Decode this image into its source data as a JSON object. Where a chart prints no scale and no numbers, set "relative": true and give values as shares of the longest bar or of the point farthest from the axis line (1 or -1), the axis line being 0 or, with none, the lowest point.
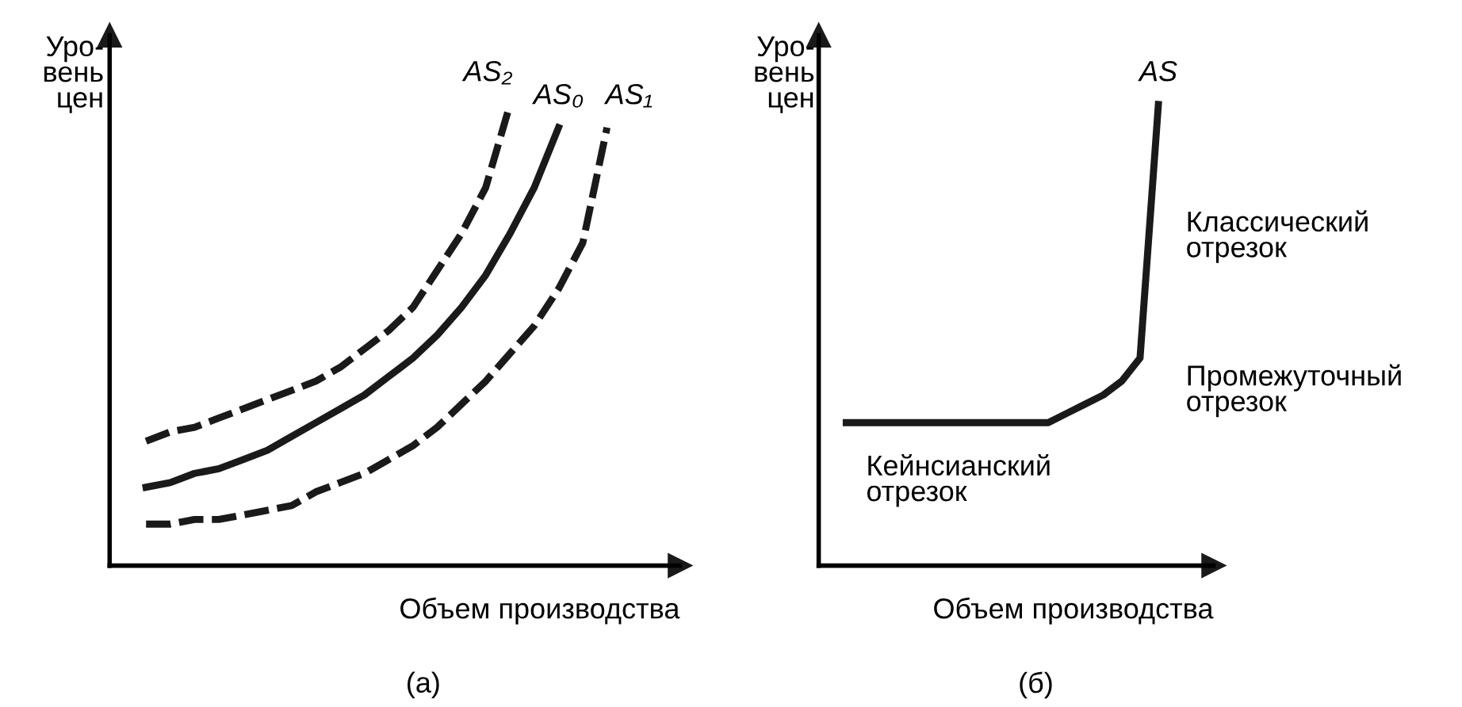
{
  "chart_data": [
    {
      "type": "line",
      "title": "(а)",
      "xlabel": "Объем производства",
      "ylabel": "Уро-\nвень\nцен",
      "relative": true,
      "legend": false,
      "grid": false,
      "marker": "none",
      "categories": [
        null,
        null,
        null,
        null,
        null,
        null,
        null,
        null,
        null,
        null,
        null,
        null,
        null,
        null,
        null,
        null,
        null,
        null,
        null,
        null
      ],
      "series": [
        {
          "name": "AS₂",
          "color": "#1a1a1a",
          "line_style": "dashed",
          "values": [
            0.27,
            0.29,
            0.3,
            0.32,
            0.34,
            0.36,
            0.38,
            0.4,
            0.43,
            0.47,
            0.51,
            0.56,
            0.64,
            0.72,
            0.82,
            1.0,
            null,
            null,
            null,
            null
          ]
        },
        {
          "name": "AS₀",
          "color": "#1a1a1a",
          "line_style": "solid",
          "values": [
            0.17,
            0.18,
            0.2,
            0.21,
            0.23,
            0.25,
            0.28,
            0.31,
            0.34,
            0.37,
            0.41,
            0.45,
            0.5,
            0.56,
            0.63,
            0.72,
            0.82,
            0.95,
            null,
            null
          ]
        },
        {
          "name": "AS₁",
          "color": "#1a1a1a",
          "line_style": "dashed",
          "values": [
            0.09,
            0.09,
            0.1,
            0.1,
            0.11,
            0.12,
            0.13,
            0.16,
            0.18,
            0.2,
            0.23,
            0.26,
            0.3,
            0.35,
            0.4,
            0.46,
            0.52,
            0.6,
            0.7,
            0.95
          ]
        }
      ]
    },
    {
      "type": "line",
      "title": "(б)",
      "xlabel": "Объем производства",
      "ylabel": "Уро-\nвень\nцен",
      "relative": true,
      "legend": false,
      "grid": false,
      "marker": "none",
      "categories": [
        null,
        null,
        null,
        null,
        null,
        null,
        null,
        null,
        null,
        null,
        null,
        null,
        null,
        null,
        null,
        null,
        null,
        null
      ],
      "series": [
        {
          "name": "AS",
          "color": "#1a1a1a",
          "line_style": "solid",
          "values": [
            0.31,
            0.31,
            0.31,
            0.31,
            0.31,
            0.31,
            0.31,
            0.31,
            0.31,
            0.31,
            0.31,
            0.31,
            0.33,
            0.35,
            0.37,
            0.4,
            0.45,
            1.0
          ]
        }
      ],
      "annotations": [
        "Классический\nотрезок",
        "Промежуточный\nотрезок",
        "Кейнсианский\nотрезок"
      ]
    }
  ]
}
